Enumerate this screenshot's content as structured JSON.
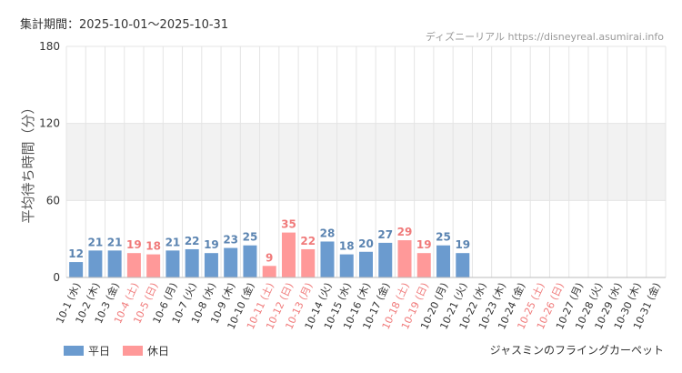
{
  "header": {
    "period": "集計期間：2025-10-01～2025-10-31",
    "source": "ディズニーリアル https://disneyreal.asumirai.info"
  },
  "footer": {
    "attraction": "ジャスミンのフライングカーペット"
  },
  "colors": {
    "weekday": "#6b9bcf",
    "holiday": "#ff9999",
    "weekday_label": "#5b84b1",
    "holiday_label": "#f07a7a",
    "band": "#f2f2f2",
    "grid": "#e4e4e4"
  },
  "chart_data": {
    "type": "bar",
    "ylabel": "平均待ち時間（分）",
    "ylim": [
      0,
      180
    ],
    "yticks": [
      0,
      60,
      120,
      180
    ],
    "shaded_band": [
      60,
      120
    ],
    "grid": true,
    "legend_position": "bottom-left",
    "legend": [
      {
        "name": "平日",
        "kind": "weekday"
      },
      {
        "name": "休日",
        "kind": "holiday"
      }
    ],
    "categories": [
      "10-1 (水)",
      "10-2 (木)",
      "10-3 (金)",
      "10-4 (土)",
      "10-5 (日)",
      "10-6 (月)",
      "10-7 (火)",
      "10-8 (水)",
      "10-9 (木)",
      "10-10 (金)",
      "10-11 (土)",
      "10-12 (日)",
      "10-13 (月)",
      "10-14 (火)",
      "10-15 (水)",
      "10-16 (木)",
      "10-17 (金)",
      "10-18 (土)",
      "10-19 (日)",
      "10-20 (月)",
      "10-21 (火)",
      "10-22 (水)",
      "10-23 (木)",
      "10-24 (金)",
      "10-25 (土)",
      "10-26 (日)",
      "10-27 (月)",
      "10-28 (火)",
      "10-29 (水)",
      "10-30 (木)",
      "10-31 (金)"
    ],
    "values": [
      12,
      21,
      21,
      19,
      18,
      21,
      22,
      19,
      23,
      25,
      9,
      35,
      22,
      28,
      18,
      20,
      27,
      29,
      19,
      25,
      19,
      null,
      null,
      null,
      null,
      null,
      null,
      null,
      null,
      null,
      null
    ],
    "day_types": [
      "weekday",
      "weekday",
      "weekday",
      "holiday",
      "holiday",
      "weekday",
      "weekday",
      "weekday",
      "weekday",
      "weekday",
      "holiday",
      "holiday",
      "holiday",
      "weekday",
      "weekday",
      "weekday",
      "weekday",
      "holiday",
      "holiday",
      "weekday",
      "weekday",
      "weekday",
      "weekday",
      "weekday",
      "holiday",
      "holiday",
      "weekday",
      "weekday",
      "weekday",
      "weekday",
      "weekday"
    ]
  }
}
